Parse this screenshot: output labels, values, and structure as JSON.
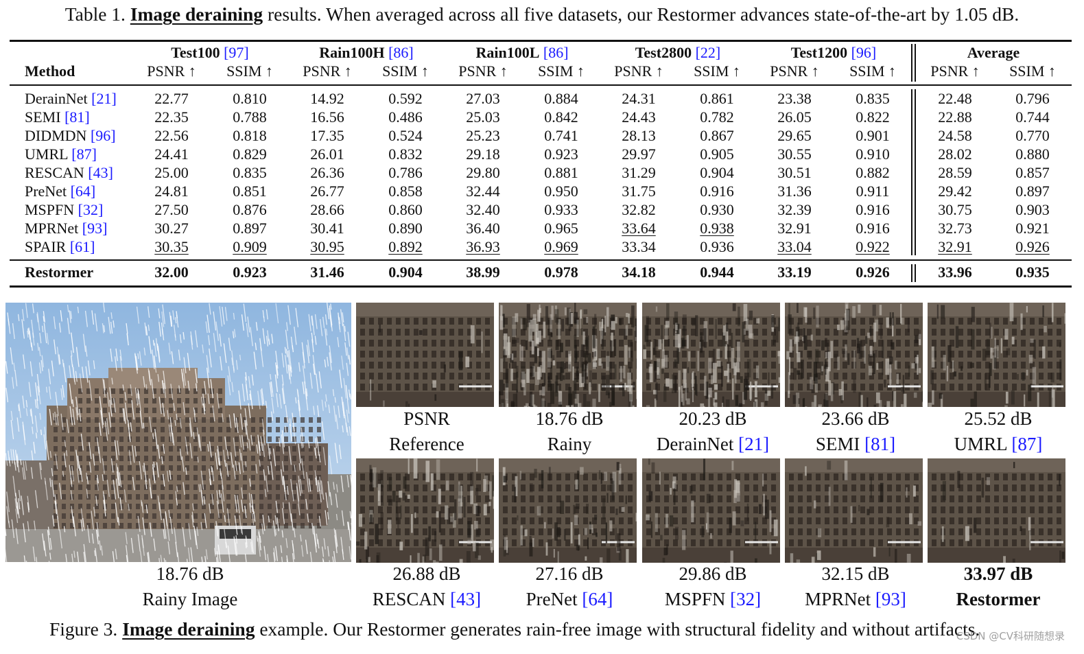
{
  "table_caption": {
    "prefix": "Table 1.",
    "keyword": "Image deraining",
    "text": "results. When averaged across all five datasets, our Restormer advances state-of-the-art by 1.05 dB."
  },
  "table": {
    "method_header": "Method",
    "datasets": [
      {
        "name": "Test100",
        "ref": "[97]"
      },
      {
        "name": "Rain100H",
        "ref": "[86]"
      },
      {
        "name": "Rain100L",
        "ref": "[86]"
      },
      {
        "name": "Test2800",
        "ref": "[22]"
      },
      {
        "name": "Test1200",
        "ref": "[96]"
      },
      {
        "name": "Average",
        "ref": ""
      }
    ],
    "metric_labels": [
      "PSNR ↑",
      "SSIM ↑"
    ],
    "rows": [
      {
        "method": "DerainNet",
        "ref": "[21]",
        "values": [
          "22.77",
          "0.810",
          "14.92",
          "0.592",
          "27.03",
          "0.884",
          "24.31",
          "0.861",
          "23.38",
          "0.835",
          "22.48",
          "0.796"
        ],
        "underline": []
      },
      {
        "method": "SEMI",
        "ref": "[81]",
        "values": [
          "22.35",
          "0.788",
          "16.56",
          "0.486",
          "25.03",
          "0.842",
          "24.43",
          "0.782",
          "26.05",
          "0.822",
          "22.88",
          "0.744"
        ],
        "underline": []
      },
      {
        "method": "DIDMDN",
        "ref": "[96]",
        "values": [
          "22.56",
          "0.818",
          "17.35",
          "0.524",
          "25.23",
          "0.741",
          "28.13",
          "0.867",
          "29.65",
          "0.901",
          "24.58",
          "0.770"
        ],
        "underline": []
      },
      {
        "method": "UMRL",
        "ref": "[87]",
        "values": [
          "24.41",
          "0.829",
          "26.01",
          "0.832",
          "29.18",
          "0.923",
          "29.97",
          "0.905",
          "30.55",
          "0.910",
          "28.02",
          "0.880"
        ],
        "underline": []
      },
      {
        "method": "RESCAN",
        "ref": "[43]",
        "values": [
          "25.00",
          "0.835",
          "26.36",
          "0.786",
          "29.80",
          "0.881",
          "31.29",
          "0.904",
          "30.51",
          "0.882",
          "28.59",
          "0.857"
        ],
        "underline": []
      },
      {
        "method": "PreNet",
        "ref": "[64]",
        "values": [
          "24.81",
          "0.851",
          "26.77",
          "0.858",
          "32.44",
          "0.950",
          "31.75",
          "0.916",
          "31.36",
          "0.911",
          "29.42",
          "0.897"
        ],
        "underline": []
      },
      {
        "method": "MSPFN",
        "ref": "[32]",
        "values": [
          "27.50",
          "0.876",
          "28.66",
          "0.860",
          "32.40",
          "0.933",
          "32.82",
          "0.930",
          "32.39",
          "0.916",
          "30.75",
          "0.903"
        ],
        "underline": []
      },
      {
        "method": "MPRNet",
        "ref": "[93]",
        "values": [
          "30.27",
          "0.897",
          "30.41",
          "0.890",
          "36.40",
          "0.965",
          "33.64",
          "0.938",
          "32.91",
          "0.916",
          "32.73",
          "0.921"
        ],
        "underline": [
          6,
          7
        ]
      },
      {
        "method": "SPAIR",
        "ref": "[61]",
        "values": [
          "30.35",
          "0.909",
          "30.95",
          "0.892",
          "36.93",
          "0.969",
          "33.34",
          "0.936",
          "33.04",
          "0.922",
          "32.91",
          "0.926"
        ],
        "underline": [
          0,
          1,
          2,
          3,
          4,
          5,
          8,
          9,
          10,
          11
        ]
      }
    ],
    "final_row": {
      "method": "Restormer",
      "values": [
        "32.00",
        "0.923",
        "31.46",
        "0.904",
        "38.99",
        "0.978",
        "34.18",
        "0.944",
        "33.19",
        "0.926",
        "33.96",
        "0.935"
      ]
    }
  },
  "figure": {
    "main_image": {
      "psnr": "18.76 dB",
      "label": "Rainy Image"
    },
    "top_row": [
      {
        "psnr": "PSNR",
        "label": "Reference",
        "ref": ""
      },
      {
        "psnr": "18.76 dB",
        "label": "Rainy",
        "ref": ""
      },
      {
        "psnr": "20.23 dB",
        "label": "DerainNet",
        "ref": "[21]"
      },
      {
        "psnr": "23.66 dB",
        "label": "SEMI",
        "ref": "[81]"
      },
      {
        "psnr": "25.52 dB",
        "label": "UMRL",
        "ref": "[87]"
      }
    ],
    "bottom_row": [
      {
        "psnr": "26.88 dB",
        "label": "RESCAN",
        "ref": "[43]"
      },
      {
        "psnr": "27.16 dB",
        "label": "PreNet",
        "ref": "[64]"
      },
      {
        "psnr": "29.86 dB",
        "label": "MSPFN",
        "ref": "[32]"
      },
      {
        "psnr": "32.15 dB",
        "label": "MPRNet",
        "ref": "[93]"
      },
      {
        "psnr": "33.97 dB",
        "label": "Restormer",
        "ref": ""
      }
    ]
  },
  "figure_caption": {
    "prefix": "Figure 3.",
    "keyword": "Image deraining",
    "text": "example. Our Restormer generates rain-free image with structural fidelity and without artifacts."
  },
  "watermark": "CSDN @CV科研随想录",
  "colors": {
    "citation": "#1a1aff",
    "text": "#111111"
  }
}
